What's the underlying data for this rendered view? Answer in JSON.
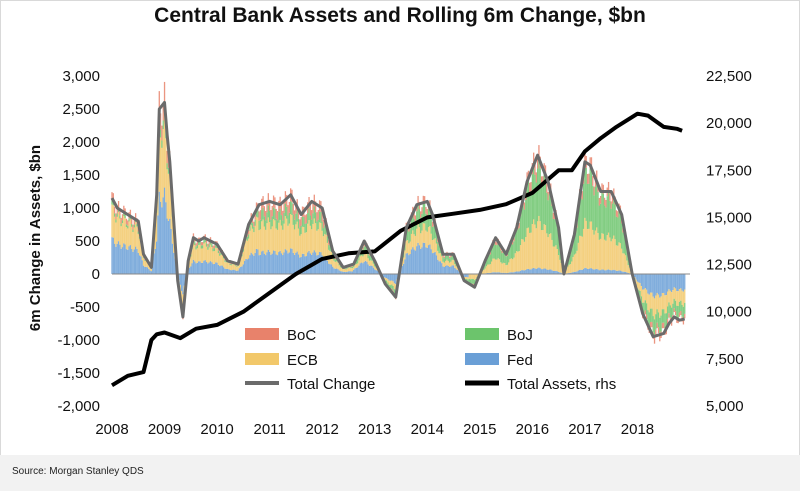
{
  "chart_data": {
    "type": "bar",
    "title": "Central Bank Assets and Rolling 6m Change, $bn",
    "ylabel": "6m Change in Assets, $bn",
    "y2label": "",
    "source": "Source: Morgan Stanley QDS",
    "ylim": [
      -2000,
      3000
    ],
    "y2lim": [
      5000,
      22500
    ],
    "xlim": [
      2008.0,
      2019.0
    ],
    "yticks": [
      "3,000",
      "2,500",
      "2,000",
      "1,500",
      "1,000",
      "500",
      "0",
      "-500",
      "-1,000",
      "-1,500",
      "-2,000"
    ],
    "y2ticks": [
      "22,500",
      "20,000",
      "17,500",
      "15,000",
      "12,500",
      "10,000",
      "7,500",
      "5,000"
    ],
    "xticks": [
      "2008",
      "2009",
      "2010",
      "2011",
      "2012",
      "2013",
      "2014",
      "2015",
      "2016",
      "2017",
      "2018"
    ],
    "legend": {
      "placement": "bottom-center",
      "boc": "BoC",
      "boj": "BoJ",
      "ecb": "ECB",
      "fed": "Fed",
      "total_change": "Total Change",
      "total_assets": "Total Assets, rhs"
    },
    "colors": {
      "boc": "#e8826b",
      "boj": "#6cc46c",
      "ecb": "#f2c86a",
      "fed": "#6a9fd6",
      "total_change": "#6b6b6b",
      "total_assets": "#000000"
    },
    "series": [
      {
        "name": "Total Change",
        "axis": "left",
        "x": [
          2008.0,
          2008.1,
          2008.3,
          2008.5,
          2008.6,
          2008.75,
          2008.85,
          2008.9,
          2009.0,
          2009.05,
          2009.1,
          2009.25,
          2009.35,
          2009.45,
          2009.55,
          2009.65,
          2009.75,
          2010.0,
          2010.2,
          2010.4,
          2010.6,
          2010.8,
          2011.0,
          2011.2,
          2011.4,
          2011.6,
          2011.8,
          2012.0,
          2012.2,
          2012.4,
          2012.6,
          2012.8,
          2013.0,
          2013.2,
          2013.4,
          2013.6,
          2013.8,
          2014.0,
          2014.1,
          2014.3,
          2014.5,
          2014.7,
          2014.9,
          2015.1,
          2015.3,
          2015.5,
          2015.7,
          2015.9,
          2016.1,
          2016.3,
          2016.5,
          2016.6,
          2016.8,
          2017.0,
          2017.1,
          2017.3,
          2017.5,
          2017.7,
          2017.9,
          2018.1,
          2018.3,
          2018.5,
          2018.6,
          2018.7,
          2018.8,
          2018.9
        ],
        "values": [
          1150,
          1000,
          900,
          800,
          300,
          100,
          1200,
          2500,
          2600,
          2100,
          1700,
          -100,
          -650,
          200,
          550,
          500,
          550,
          450,
          200,
          150,
          750,
          1050,
          1100,
          1050,
          1200,
          900,
          1100,
          1000,
          350,
          100,
          150,
          500,
          200,
          -150,
          -350,
          700,
          1050,
          1100,
          900,
          300,
          300,
          -100,
          -200,
          200,
          550,
          300,
          700,
          1400,
          1800,
          1400,
          700,
          0,
          600,
          1700,
          1650,
          1250,
          1250,
          900,
          0,
          -600,
          -950,
          -900,
          -750,
          -650,
          -700,
          -680
        ]
      },
      {
        "name": "Total Assets, rhs",
        "axis": "right",
        "x": [
          2008.0,
          2008.3,
          2008.6,
          2008.75,
          2008.85,
          2009.0,
          2009.3,
          2009.6,
          2010.0,
          2010.5,
          2011.0,
          2011.5,
          2012.0,
          2012.5,
          2013.0,
          2013.5,
          2014.0,
          2014.5,
          2015.0,
          2015.5,
          2016.0,
          2016.5,
          2016.75,
          2017.0,
          2017.3,
          2017.6,
          2018.0,
          2018.2,
          2018.35,
          2018.5,
          2018.75,
          2018.85
        ],
        "values": [
          6100,
          6600,
          6800,
          8500,
          8800,
          8900,
          8600,
          9100,
          9300,
          10000,
          11000,
          12000,
          12800,
          13100,
          13200,
          14300,
          15000,
          15200,
          15400,
          15700,
          16300,
          17500,
          17500,
          18500,
          19200,
          19800,
          20500,
          20400,
          20100,
          19800,
          19700,
          19600
        ]
      }
    ]
  }
}
